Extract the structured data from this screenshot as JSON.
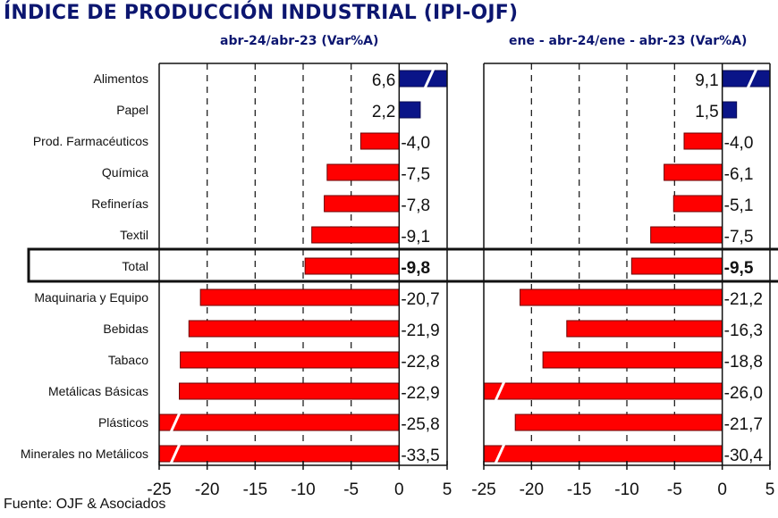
{
  "title": "ÍNDICE DE PRODUCCIÓN INDUSTRIAL (IPI-OJF)",
  "source": "Fuente: OJF & Asociados",
  "colors": {
    "positive": "#0a1488",
    "negative": "#ff0000",
    "negative_border": "#6b0000",
    "title": "#0c1670"
  },
  "chart_data": [
    {
      "type": "bar",
      "orientation": "horizontal",
      "title": "abr-24/abr-23  (Var%A)",
      "categories": [
        "Alimentos",
        "Papel",
        "Prod. Farmacéuticos",
        "Química",
        "Refinerías",
        "Textil",
        "Total",
        "Maquinaria y Equipo",
        "Bebidas",
        "Tabaco",
        "Metálicas Básicas",
        "Plásticos",
        "Minerales no Metálicos"
      ],
      "values": [
        6.6,
        2.2,
        -4.0,
        -7.5,
        -7.8,
        -9.1,
        -9.8,
        -20.7,
        -21.9,
        -22.8,
        -22.9,
        -25.8,
        -33.5
      ],
      "value_labels": [
        "6,6",
        "2,2",
        "-4,0",
        "-7,5",
        "-7,8",
        "-9,1",
        "-9,8",
        "-20,7",
        "-21,9",
        "-22,8",
        "-22,9",
        "-25,8",
        "-33,5"
      ],
      "highlight_category": "Total",
      "xlim": [
        -25,
        5
      ],
      "xticks": [
        -25,
        -20,
        -15,
        -10,
        -5,
        0,
        5
      ],
      "xtick_labels": [
        "-25",
        "-20",
        "-15",
        "-10",
        "-5",
        "0",
        "5"
      ],
      "grid": "vertical dashed",
      "truncated_bars": [
        "Alimentos",
        "Plásticos",
        "Minerales no Metálicos"
      ]
    },
    {
      "type": "bar",
      "orientation": "horizontal",
      "title": "ene - abr-24/ene - abr-23  (Var%A)",
      "categories": [
        "Alimentos",
        "Papel",
        "Prod. Farmacéuticos",
        "Química",
        "Refinerías",
        "Textil",
        "Total",
        "Maquinaria y Equipo",
        "Bebidas",
        "Tabaco",
        "Metálicas Básicas",
        "Plásticos",
        "Minerales no Metálicos"
      ],
      "values": [
        9.1,
        1.5,
        -4.0,
        -6.1,
        -5.1,
        -7.5,
        -9.5,
        -21.2,
        -16.3,
        -18.8,
        -26.0,
        -21.7,
        -30.4
      ],
      "value_labels": [
        "9,1",
        "1,5",
        "-4,0",
        "-6,1",
        "-5,1",
        "-7,5",
        "-9,5",
        "-21,2",
        "-16,3",
        "-18,8",
        "-26,0",
        "-21,7",
        "-30,4"
      ],
      "highlight_category": "Total",
      "xlim": [
        -25,
        5
      ],
      "xticks": [
        -25,
        -20,
        -15,
        -10,
        -5,
        0,
        5
      ],
      "xtick_labels": [
        "-25",
        "-20",
        "-15",
        "-10",
        "-5",
        "0",
        "5"
      ],
      "grid": "vertical dashed",
      "truncated_bars": [
        "Alimentos",
        "Metálicas Básicas",
        "Minerales no Metálicos"
      ]
    }
  ]
}
